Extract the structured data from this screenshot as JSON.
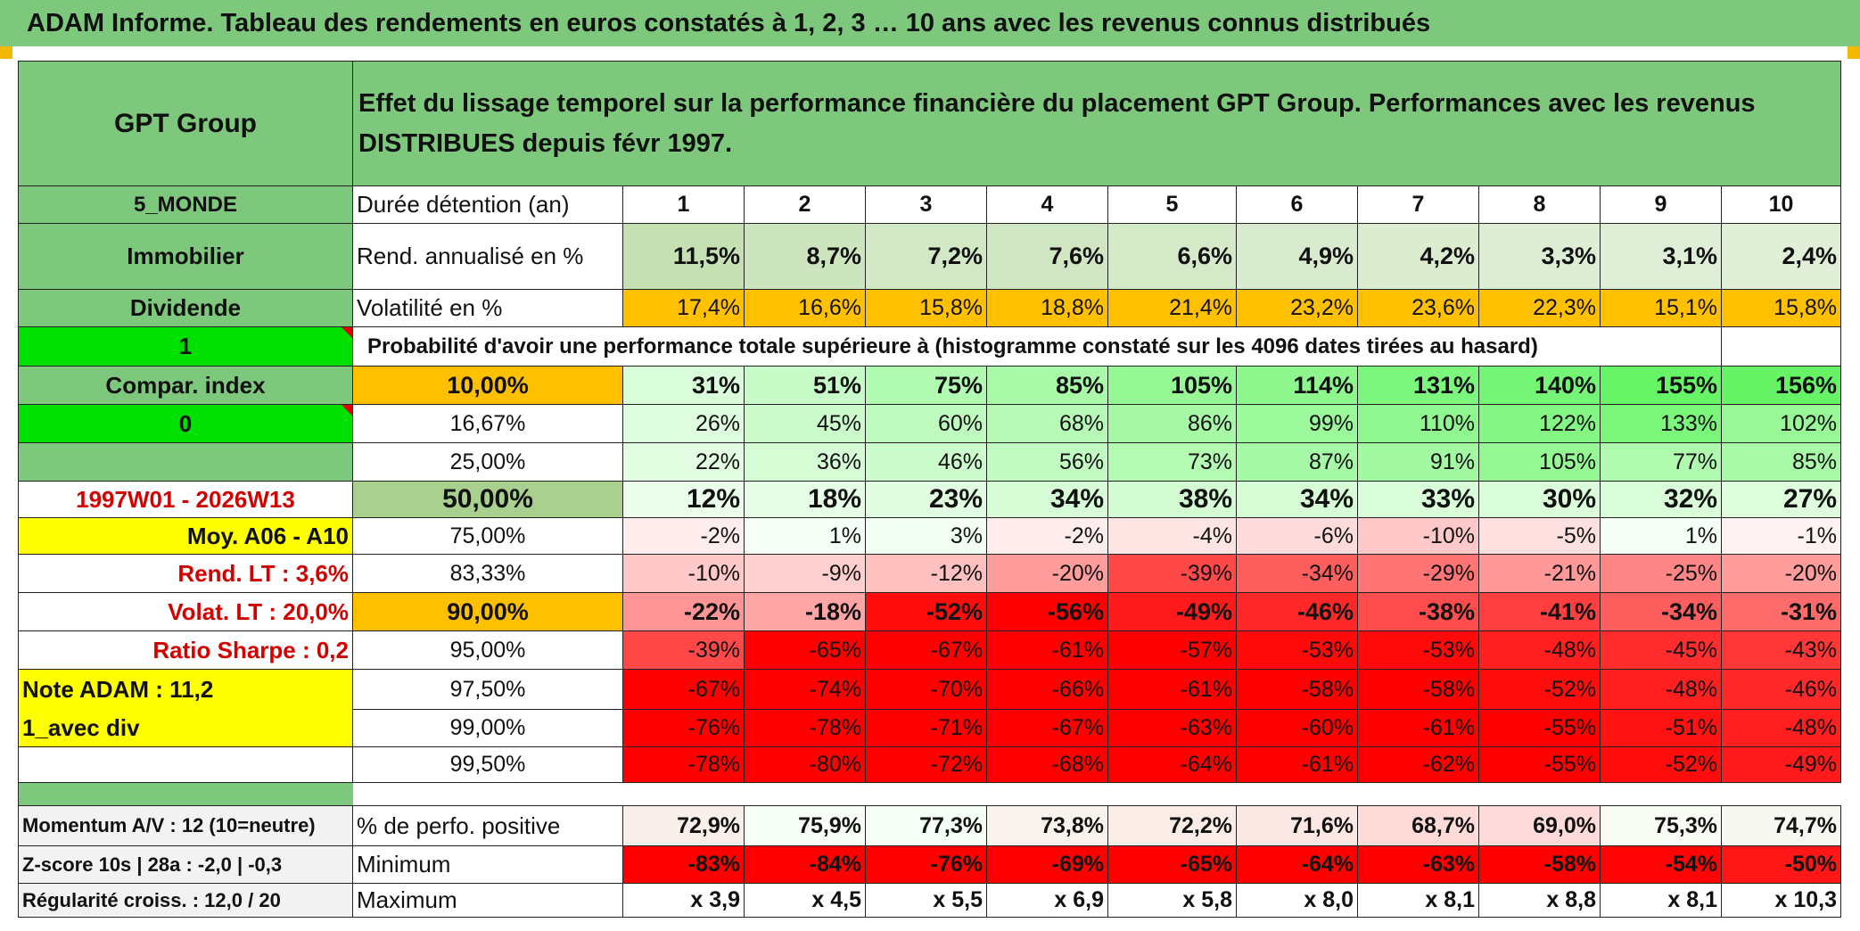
{
  "title": "ADAM Informe. Tableau des rendements en euros constatés à 1, 2, 3 … 10 ans avec les revenus connus distribués",
  "header": {
    "name": "GPT Group",
    "description": "Effet du lissage temporel sur la performance financière du placement GPT Group. Performances avec les revenus DISTRIBUES depuis févr 1997."
  },
  "colors": {
    "green_header": "#7dc87d",
    "bright_green": "#00e000",
    "orange": "#ffc000",
    "yellow": "#ffff00",
    "red_text": "#d40000"
  },
  "durations": {
    "label": "Durée détention (an)",
    "values": [
      "1",
      "2",
      "3",
      "4",
      "5",
      "6",
      "7",
      "8",
      "9",
      "10"
    ]
  },
  "left_labels": {
    "zone": "5_MONDE",
    "sector": "Immobilier",
    "type": "Dividende",
    "flag1": "1",
    "compar": "Compar. index",
    "flag0": "0",
    "period": "1997W01 - 2026W13",
    "moy": "Moy. A06 - A10",
    "rend_lt": "Rend. LT :   3,6%",
    "volat_lt": "Volat. LT :   20,0%",
    "sharpe": "Ratio Sharpe :    0,2",
    "note": "Note ADAM : 11,2",
    "mode": "1_avec div",
    "momentum": "Momentum A/V : 12 (10=neutre)",
    "zscore": "Z-score 10s | 28a : -2,0 | -0,3",
    "regularite": "Régularité croiss. : 12,0 / 20"
  },
  "rend": {
    "label": "Rend. annualisé en %",
    "values": [
      "11,5%",
      "8,7%",
      "7,2%",
      "7,6%",
      "6,6%",
      "4,9%",
      "4,2%",
      "3,3%",
      "3,1%",
      "2,4%"
    ]
  },
  "volat": {
    "label": "Volatilité en %",
    "values": [
      "17,4%",
      "16,6%",
      "15,8%",
      "18,8%",
      "21,4%",
      "23,2%",
      "23,6%",
      "22,3%",
      "15,1%",
      "15,8%"
    ]
  },
  "prob_title": "Probabilité d'avoir une performance totale supérieure à (histogramme constaté sur les 4096 dates tirées au hasard)",
  "prob_rows": [
    {
      "p": "10,00%",
      "values": [
        "31%",
        "51%",
        "75%",
        "85%",
        "105%",
        "114%",
        "131%",
        "140%",
        "155%",
        "156%"
      ]
    },
    {
      "p": "16,67%",
      "values": [
        "26%",
        "45%",
        "60%",
        "68%",
        "86%",
        "99%",
        "110%",
        "122%",
        "133%",
        "102%"
      ]
    },
    {
      "p": "25,00%",
      "values": [
        "22%",
        "36%",
        "46%",
        "56%",
        "73%",
        "87%",
        "91%",
        "105%",
        "77%",
        "85%"
      ]
    },
    {
      "p": "50,00%",
      "values": [
        "12%",
        "18%",
        "23%",
        "34%",
        "38%",
        "34%",
        "33%",
        "30%",
        "32%",
        "27%"
      ]
    },
    {
      "p": "75,00%",
      "values": [
        "-2%",
        "1%",
        "3%",
        "-2%",
        "-4%",
        "-6%",
        "-10%",
        "-5%",
        "1%",
        "-1%"
      ]
    },
    {
      "p": "83,33%",
      "values": [
        "-10%",
        "-9%",
        "-12%",
        "-20%",
        "-39%",
        "-34%",
        "-29%",
        "-21%",
        "-25%",
        "-20%"
      ]
    },
    {
      "p": "90,00%",
      "values": [
        "-22%",
        "-18%",
        "-52%",
        "-56%",
        "-49%",
        "-46%",
        "-38%",
        "-41%",
        "-34%",
        "-31%"
      ]
    },
    {
      "p": "95,00%",
      "values": [
        "-39%",
        "-65%",
        "-67%",
        "-61%",
        "-57%",
        "-53%",
        "-53%",
        "-48%",
        "-45%",
        "-43%"
      ]
    },
    {
      "p": "97,50%",
      "values": [
        "-67%",
        "-74%",
        "-70%",
        "-66%",
        "-61%",
        "-58%",
        "-58%",
        "-52%",
        "-48%",
        "-46%"
      ]
    },
    {
      "p": "99,00%",
      "values": [
        "-76%",
        "-78%",
        "-71%",
        "-67%",
        "-63%",
        "-60%",
        "-61%",
        "-55%",
        "-51%",
        "-48%"
      ]
    },
    {
      "p": "99,50%",
      "values": [
        "-78%",
        "-80%",
        "-72%",
        "-68%",
        "-64%",
        "-61%",
        "-62%",
        "-55%",
        "-52%",
        "-49%"
      ]
    }
  ],
  "stats": [
    {
      "label": "% de perfo. positive",
      "values": [
        "72,9%",
        "75,9%",
        "77,3%",
        "73,8%",
        "72,2%",
        "71,6%",
        "68,7%",
        "69,0%",
        "75,3%",
        "74,7%"
      ]
    },
    {
      "label": "Minimum",
      "values": [
        "-83%",
        "-84%",
        "-76%",
        "-69%",
        "-65%",
        "-64%",
        "-63%",
        "-58%",
        "-54%",
        "-50%"
      ]
    },
    {
      "label": "Maximum",
      "values": [
        "x 3,9",
        "x 4,5",
        "x 5,5",
        "x 6,9",
        "x 5,8",
        "x 8,0",
        "x 8,1",
        "x 8,8",
        "x 8,1",
        "x 10,3"
      ]
    }
  ]
}
